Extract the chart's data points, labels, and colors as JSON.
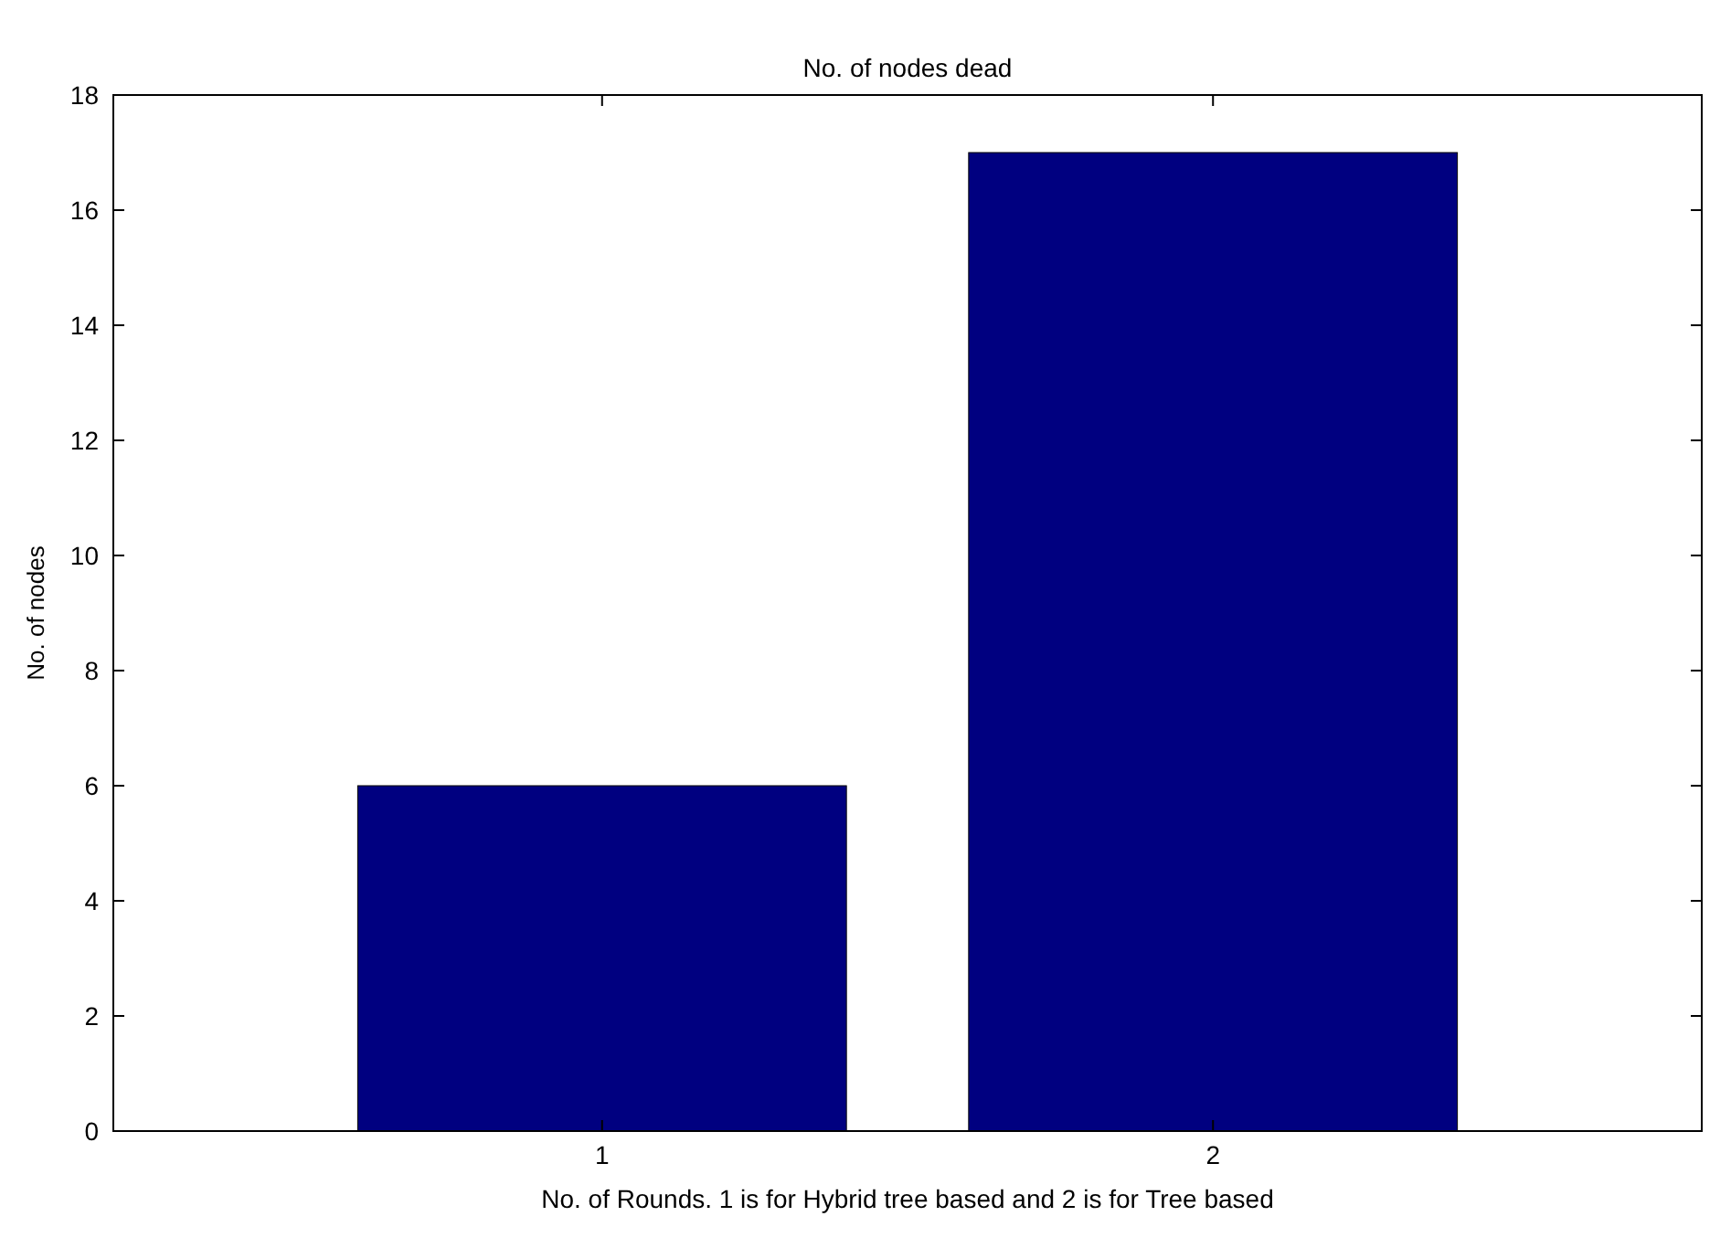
{
  "chart_data": {
    "type": "bar",
    "title": "No. of nodes dead",
    "xlabel": "No. of Rounds. 1 is for Hybrid tree based and 2 is for Tree based",
    "ylabel": "No. of nodes",
    "categories": [
      "1",
      "2"
    ],
    "values": [
      6,
      17
    ],
    "color": "#000080",
    "ylim": [
      0,
      18
    ],
    "yticks": [
      0,
      2,
      4,
      6,
      8,
      10,
      12,
      14,
      16,
      18
    ],
    "grid": false
  }
}
